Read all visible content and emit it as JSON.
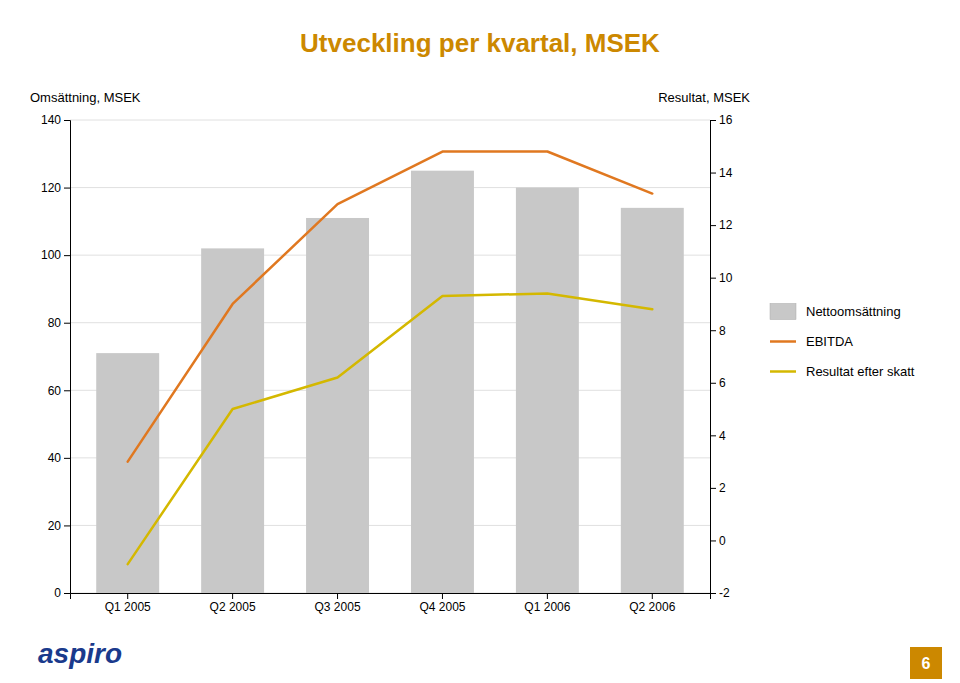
{
  "chart_data": {
    "type": "bar",
    "title": "Utveckling per kvartal, MSEK",
    "categories": [
      "Q1 2005",
      "Q2 2005",
      "Q3 2005",
      "Q4 2005",
      "Q1 2006",
      "Q2 2006"
    ],
    "series": [
      {
        "name": "Nettoomsättning",
        "type": "bar",
        "color": "#C8C8C8",
        "values": [
          71,
          102,
          111,
          125,
          120,
          114
        ]
      },
      {
        "name": "EBITDA",
        "type": "line",
        "color": "#E07820",
        "axis": "y2",
        "values": [
          3.0,
          9.0,
          12.8,
          14.8,
          14.8,
          13.2
        ]
      },
      {
        "name": "Resultat efter skatt",
        "type": "line",
        "color": "#D4B800",
        "axis": "y2",
        "values": [
          -0.9,
          5.0,
          6.2,
          9.3,
          9.4,
          8.8
        ]
      }
    ],
    "ylabel": "Omsättning, MSEK",
    "y2label": "Resultat, MSEK",
    "ylim": [
      0,
      140
    ],
    "yticks": [
      0,
      20,
      40,
      60,
      80,
      100,
      120,
      140
    ],
    "y2lim": [
      -2,
      16
    ],
    "y2ticks": [
      -2,
      0,
      2,
      4,
      6,
      8,
      10,
      12,
      14,
      16
    ],
    "grid": true,
    "legend": "right",
    "annotations": [
      {
        "text": "aspiro",
        "color": "#1A3A8C"
      },
      {
        "text": "6",
        "color": "#CC8800"
      }
    ]
  }
}
